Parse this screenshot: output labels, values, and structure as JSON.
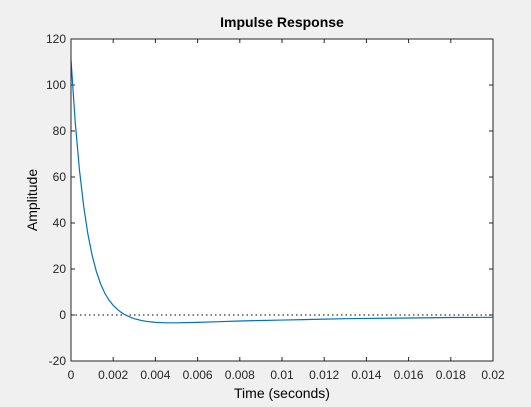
{
  "chart_data": {
    "type": "line",
    "title": "Impulse Response",
    "xlabel": "Time (seconds)",
    "ylabel": "Amplitude",
    "xlim": [
      0,
      0.02
    ],
    "ylim": [
      -20,
      120
    ],
    "xticks": [
      "0",
      "0.002",
      "0.004",
      "0.006",
      "0.008",
      "0.01",
      "0.012",
      "0.014",
      "0.016",
      "0.018",
      "0.02"
    ],
    "yticks": [
      "-20",
      "0",
      "20",
      "40",
      "60",
      "80",
      "100",
      "120"
    ],
    "grid": false,
    "reference_line": {
      "y": 0,
      "style": "dotted"
    },
    "series": [
      {
        "color": "#0072bd",
        "x": [
          0,
          0.0002,
          0.0004,
          0.0006,
          0.0008,
          0.001,
          0.0012,
          0.0014,
          0.0016,
          0.0018,
          0.002,
          0.0022,
          0.0024,
          0.0026,
          0.0028,
          0.003,
          0.0033,
          0.0036,
          0.004,
          0.0045,
          0.005,
          0.006,
          0.007,
          0.008,
          0.009,
          0.01,
          0.011,
          0.012,
          0.013,
          0.014,
          0.015,
          0.016,
          0.017,
          0.018,
          0.019,
          0.02
        ],
        "y": [
          111,
          83.8,
          63.1,
          47.3,
          35.2,
          26.0,
          19.0,
          13.6,
          9.5,
          6.5,
          4.2,
          2.4,
          1.0,
          -0.1,
          -0.9,
          -1.6,
          -2.3,
          -2.8,
          -3.2,
          -3.4,
          -3.4,
          -3.2,
          -2.9,
          -2.6,
          -2.4,
          -2.2,
          -2.0,
          -1.8,
          -1.6,
          -1.5,
          -1.4,
          -1.3,
          -1.2,
          -1.1,
          -1.05,
          -1.0
        ]
      }
    ]
  }
}
